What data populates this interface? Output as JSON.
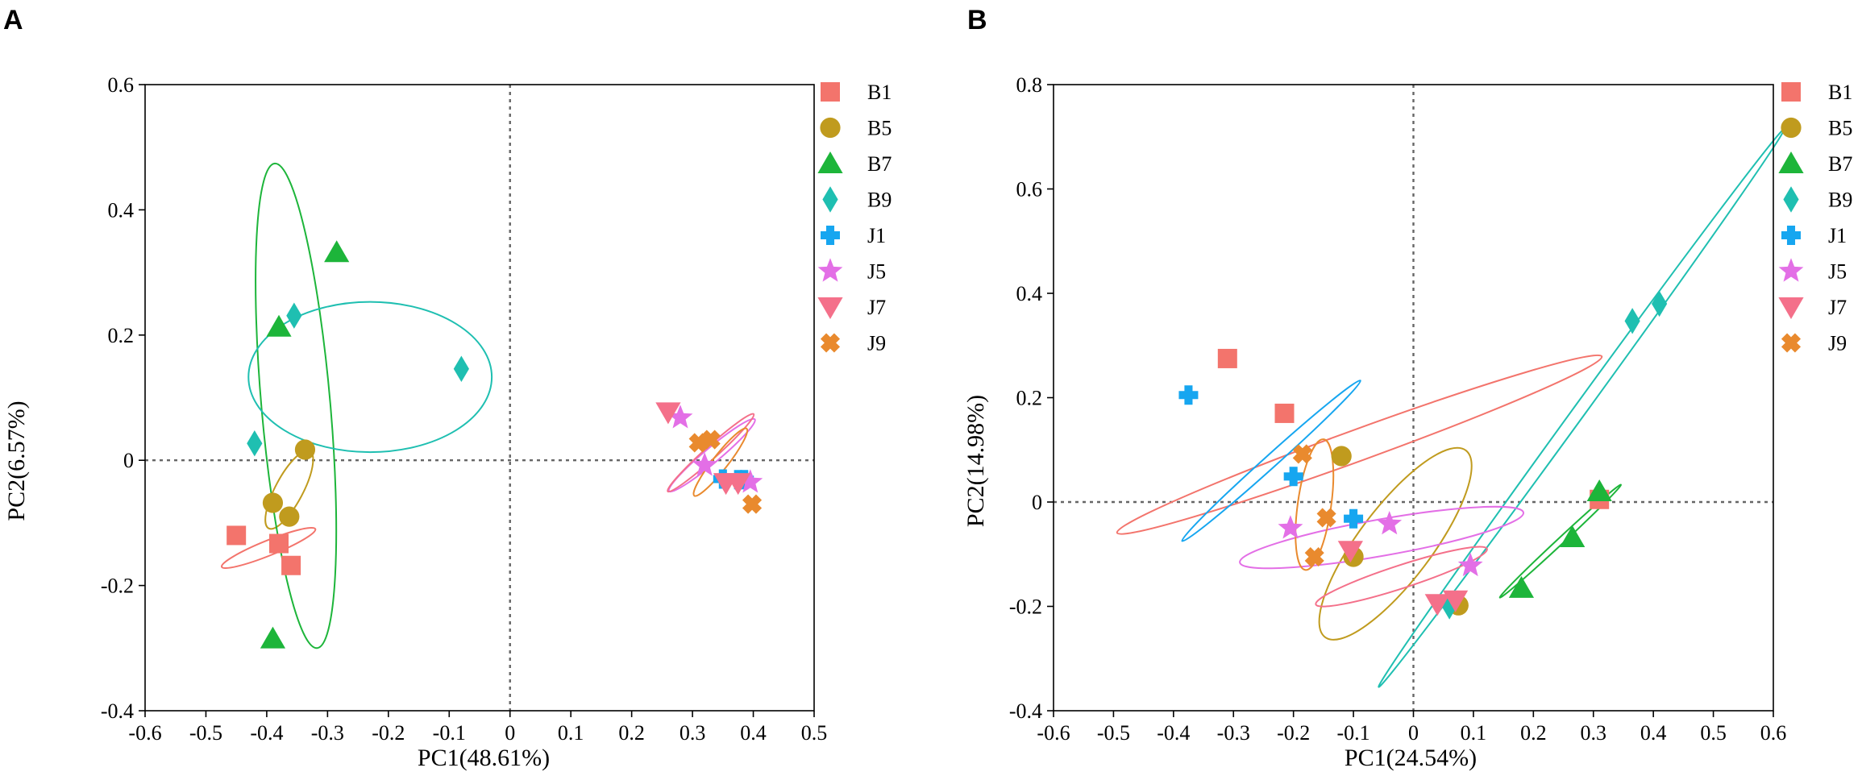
{
  "series_styles": [
    {
      "name": "B1",
      "color": "#F3746C",
      "marker": "square"
    },
    {
      "name": "B5",
      "color": "#C09B1E",
      "marker": "circle"
    },
    {
      "name": "B7",
      "color": "#1DB53A",
      "marker": "triangle-up"
    },
    {
      "name": "B9",
      "color": "#1FBFB1",
      "marker": "diamond"
    },
    {
      "name": "J1",
      "color": "#16A6F0",
      "marker": "plus"
    },
    {
      "name": "J5",
      "color": "#E36FE6",
      "marker": "star"
    },
    {
      "name": "J7",
      "color": "#F4708A",
      "marker": "triangle-down"
    },
    {
      "name": "J9",
      "color": "#E98A2E",
      "marker": "x"
    }
  ],
  "chart_data": [
    {
      "panel_label": "A",
      "type": "scatter",
      "xlabel": "PC1(48.61%)",
      "ylabel": "PC2(6.57%)",
      "xlim": [
        -0.6,
        0.5
      ],
      "ylim": [
        -0.4,
        0.6
      ],
      "xticks": [
        -0.6,
        -0.5,
        -0.4,
        -0.3,
        -0.2,
        -0.1,
        0,
        0.1,
        0.2,
        0.3,
        0.4,
        0.5
      ],
      "yticks": [
        -0.4,
        -0.2,
        0,
        0.2,
        0.4,
        0.6
      ],
      "xtick_labels": [
        "-0.6",
        "-0.5",
        "-0.4",
        "-0.3",
        "-0.2",
        "-0.1",
        "0",
        "0.1",
        "0.2",
        "0.3",
        "0.4",
        "0.5"
      ],
      "ytick_labels": [
        "-0.4",
        "-0.2",
        "0",
        "0.2",
        "0.4",
        "0.6"
      ],
      "zero_lines": true,
      "legend_position": "right",
      "series": [
        {
          "name": "B1",
          "points": [
            [
              -0.45,
              -0.12
            ],
            [
              -0.38,
              -0.133
            ],
            [
              -0.36,
              -0.168
            ]
          ]
        },
        {
          "name": "B5",
          "points": [
            [
              -0.337,
              0.017
            ],
            [
              -0.39,
              -0.068
            ],
            [
              -0.363,
              -0.09
            ]
          ]
        },
        {
          "name": "B7",
          "points": [
            [
              -0.285,
              0.332
            ],
            [
              -0.38,
              0.213
            ],
            [
              -0.39,
              -0.285
            ]
          ]
        },
        {
          "name": "B9",
          "points": [
            [
              -0.355,
              0.231
            ],
            [
              -0.08,
              0.146
            ],
            [
              -0.42,
              0.027
            ]
          ]
        },
        {
          "name": "J1",
          "points": [
            [
              0.35,
              -0.03
            ],
            [
              0.375,
              -0.031
            ],
            [
              0.385,
              -0.031
            ]
          ]
        },
        {
          "name": "J5",
          "points": [
            [
              0.28,
              0.068
            ],
            [
              0.32,
              -0.008
            ],
            [
              0.395,
              -0.035
            ]
          ]
        },
        {
          "name": "J7",
          "points": [
            [
              0.26,
              0.077
            ],
            [
              0.355,
              -0.036
            ],
            [
              0.375,
              -0.036
            ]
          ]
        },
        {
          "name": "J9",
          "points": [
            [
              0.33,
              0.033
            ],
            [
              0.31,
              0.028
            ],
            [
              0.398,
              -0.07
            ]
          ]
        }
      ],
      "ellipses": [
        {
          "name": "B1",
          "cx": -0.397,
          "cy": -0.14,
          "rx": 0.083,
          "ry": 0.012,
          "angle": -22
        },
        {
          "name": "B5",
          "cx": -0.363,
          "cy": -0.047,
          "rx": 0.072,
          "ry": 0.022,
          "angle": -62
        },
        {
          "name": "B7",
          "cx": -0.352,
          "cy": 0.087,
          "rx": 0.4,
          "ry": 0.055,
          "angle": 85
        },
        {
          "name": "B9",
          "cx": -0.23,
          "cy": 0.133,
          "rx": 0.2,
          "ry": 0.12,
          "angle": 0
        },
        {
          "name": "J1",
          "cx": 0.37,
          "cy": -0.03,
          "rx": 0.022,
          "ry": 0.005,
          "angle": 0
        },
        {
          "name": "J5",
          "cx": 0.332,
          "cy": 0.008,
          "rx": 0.092,
          "ry": 0.012,
          "angle": -40
        },
        {
          "name": "J7",
          "cx": 0.33,
          "cy": 0.012,
          "rx": 0.095,
          "ry": 0.01,
          "angle": -42
        },
        {
          "name": "J9",
          "cx": 0.346,
          "cy": -0.003,
          "rx": 0.07,
          "ry": 0.012,
          "angle": -52
        }
      ]
    },
    {
      "panel_label": "B",
      "type": "scatter",
      "xlabel": "PC1(24.54%)",
      "ylabel": "PC2(14.98%)",
      "xlim": [
        -0.6,
        0.6
      ],
      "ylim": [
        -0.4,
        0.8
      ],
      "xticks": [
        -0.6,
        -0.5,
        -0.4,
        -0.3,
        -0.2,
        -0.1,
        0,
        0.1,
        0.2,
        0.3,
        0.4,
        0.5,
        0.6
      ],
      "yticks": [
        -0.4,
        -0.2,
        0,
        0.2,
        0.4,
        0.6,
        0.8
      ],
      "xtick_labels": [
        "-0.6",
        "-0.5",
        "-0.4",
        "-0.3",
        "-0.2",
        "-0.1",
        "0",
        "0.1",
        "0.2",
        "0.3",
        "0.4",
        "0.5",
        "0.6"
      ],
      "ytick_labels": [
        "-0.4",
        "-0.2",
        "0",
        "0.2",
        "0.4",
        "0.6",
        "0.8"
      ],
      "zero_lines": true,
      "legend_position": "right",
      "series": [
        {
          "name": "B1",
          "points": [
            [
              -0.31,
              0.275
            ],
            [
              -0.215,
              0.17
            ],
            [
              0.31,
              0.005
            ]
          ]
        },
        {
          "name": "B5",
          "points": [
            [
              -0.12,
              0.088
            ],
            [
              -0.1,
              -0.105
            ],
            [
              0.075,
              -0.198
            ]
          ]
        },
        {
          "name": "B7",
          "points": [
            [
              0.31,
              0.02
            ],
            [
              0.265,
              -0.068
            ],
            [
              0.18,
              -0.165
            ]
          ]
        },
        {
          "name": "B9",
          "points": [
            [
              0.365,
              0.347
            ],
            [
              0.41,
              0.38
            ],
            [
              0.06,
              -0.2
            ]
          ]
        },
        {
          "name": "J1",
          "points": [
            [
              -0.375,
              0.205
            ],
            [
              -0.2,
              0.049
            ],
            [
              -0.1,
              -0.032
            ]
          ]
        },
        {
          "name": "J5",
          "points": [
            [
              -0.205,
              -0.05
            ],
            [
              -0.04,
              -0.042
            ],
            [
              0.095,
              -0.122
            ]
          ]
        },
        {
          "name": "J7",
          "points": [
            [
              -0.105,
              -0.093
            ],
            [
              0.04,
              -0.195
            ],
            [
              0.07,
              -0.188
            ]
          ]
        },
        {
          "name": "J9",
          "points": [
            [
              -0.185,
              0.092
            ],
            [
              -0.145,
              -0.03
            ],
            [
              -0.165,
              -0.105
            ]
          ]
        }
      ],
      "ellipses": [
        {
          "name": "B1",
          "cx": -0.09,
          "cy": 0.11,
          "rx": 0.43,
          "ry": 0.03,
          "angle": -20
        },
        {
          "name": "B5",
          "cx": -0.03,
          "cy": -0.08,
          "rx": 0.195,
          "ry": 0.07,
          "angle": -53
        },
        {
          "name": "B7",
          "cx": 0.245,
          "cy": -0.075,
          "rx": 0.138,
          "ry": 0.006,
          "angle": -43
        },
        {
          "name": "B9",
          "cx": 0.28,
          "cy": 0.18,
          "rx": 0.575,
          "ry": 0.012,
          "angle": -54
        },
        {
          "name": "J1",
          "cx": -0.237,
          "cy": 0.079,
          "rx": 0.2,
          "ry": 0.012,
          "angle": -42
        },
        {
          "name": "J5",
          "cx": -0.053,
          "cy": -0.068,
          "rx": 0.24,
          "ry": 0.035,
          "angle": -10
        },
        {
          "name": "J7",
          "cx": -0.02,
          "cy": -0.143,
          "rx": 0.15,
          "ry": 0.022,
          "angle": -18
        },
        {
          "name": "J9",
          "cx": -0.165,
          "cy": -0.005,
          "rx": 0.11,
          "ry": 0.032,
          "angle": -82
        }
      ]
    }
  ]
}
